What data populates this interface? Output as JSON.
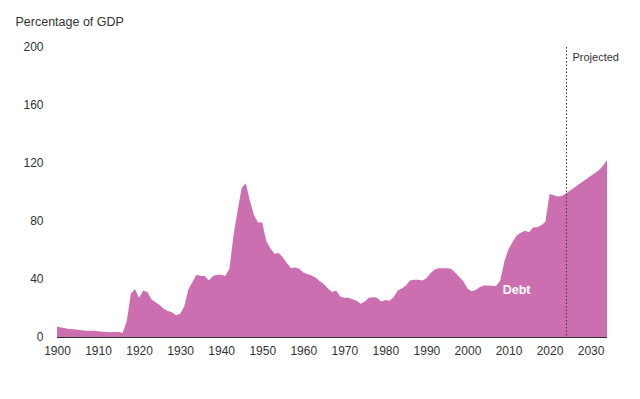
{
  "chart_data": {
    "type": "area",
    "y_label": "Percentage of GDP",
    "x": [
      1900,
      1901,
      1902,
      1903,
      1904,
      1905,
      1906,
      1907,
      1908,
      1909,
      1910,
      1911,
      1912,
      1913,
      1914,
      1915,
      1916,
      1917,
      1918,
      1919,
      1920,
      1921,
      1922,
      1923,
      1924,
      1925,
      1926,
      1927,
      1928,
      1929,
      1930,
      1931,
      1932,
      1933,
      1934,
      1935,
      1936,
      1937,
      1938,
      1939,
      1940,
      1941,
      1942,
      1943,
      1944,
      1945,
      1946,
      1947,
      1948,
      1949,
      1950,
      1951,
      1952,
      1953,
      1954,
      1955,
      1956,
      1957,
      1958,
      1959,
      1960,
      1961,
      1962,
      1963,
      1964,
      1965,
      1966,
      1967,
      1968,
      1969,
      1970,
      1971,
      1972,
      1973,
      1974,
      1975,
      1976,
      1977,
      1978,
      1979,
      1980,
      1981,
      1982,
      1983,
      1984,
      1985,
      1986,
      1987,
      1988,
      1989,
      1990,
      1991,
      1992,
      1993,
      1994,
      1995,
      1996,
      1997,
      1998,
      1999,
      2000,
      2001,
      2002,
      2003,
      2004,
      2005,
      2006,
      2007,
      2008,
      2009,
      2010,
      2011,
      2012,
      2013,
      2014,
      2015,
      2016,
      2017,
      2018,
      2019,
      2020,
      2021,
      2022,
      2023,
      2024,
      2025,
      2026,
      2027,
      2028,
      2029,
      2030,
      2031,
      2032,
      2033,
      2034
    ],
    "series": [
      {
        "name": "Debt",
        "color": "#cc6fb0",
        "values": [
          7,
          6.5,
          6,
          5.5,
          5.3,
          5,
          4.6,
          4.3,
          4.3,
          4.3,
          3.9,
          3.7,
          3.5,
          3.3,
          3.4,
          3.4,
          2.9,
          11,
          30,
          33,
          27,
          32,
          31,
          26,
          24,
          22,
          19.5,
          18,
          17,
          15,
          16,
          21,
          33,
          38,
          43,
          42,
          42,
          39,
          42,
          43,
          43,
          42,
          47,
          70,
          87,
          103,
          106,
          94,
          84,
          79,
          79,
          66,
          61,
          57.5,
          58,
          55,
          51,
          47.5,
          48,
          47,
          44.5,
          43.5,
          42.5,
          41,
          38.5,
          36.5,
          33.5,
          31,
          32,
          28,
          27,
          27,
          26,
          25,
          23,
          24.5,
          27,
          27.5,
          27,
          24.5,
          25.5,
          25,
          27.5,
          32,
          33.5,
          35.5,
          39,
          39.5,
          39.5,
          39,
          40.5,
          44,
          46.5,
          47.5,
          47.5,
          47.5,
          47,
          44.5,
          41.5,
          38.5,
          33.5,
          31.5,
          32.5,
          34.5,
          35.5,
          35.6,
          35.3,
          35.2,
          39.2,
          52.3,
          60.6,
          65.5,
          70,
          71.9,
          73.3,
          72.2,
          75.6,
          75.7,
          77.1,
          79.4,
          98.7,
          97.7,
          96.9,
          97.3,
          99,
          101,
          103,
          105,
          107,
          109,
          111,
          113,
          115,
          118,
          122
        ]
      }
    ],
    "projection": {
      "x": 2024,
      "label": "Projected",
      "line_style": "dotted"
    },
    "xlim": [
      1900,
      2034
    ],
    "xticks": [
      1900,
      1910,
      1920,
      1930,
      1940,
      1950,
      1960,
      1970,
      1980,
      1990,
      2000,
      2010,
      2020,
      2030
    ],
    "ylim": [
      0,
      200
    ],
    "yticks": [
      0,
      40,
      80,
      120,
      160,
      200
    ],
    "grid": false
  }
}
